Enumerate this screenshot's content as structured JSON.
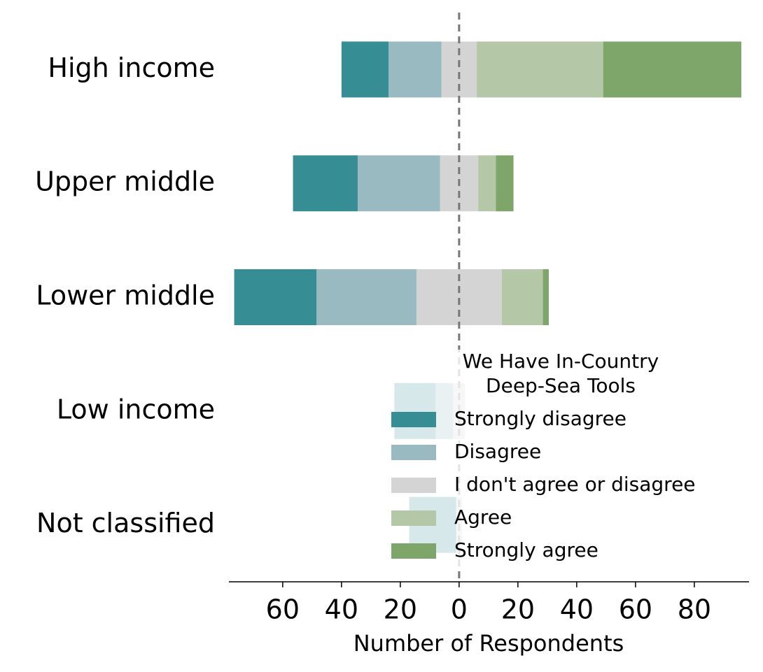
{
  "chart_data": {
    "type": "diverging_bar",
    "categories": [
      "High income",
      "Upper middle",
      "Lower middle",
      "Low income",
      "Not classified"
    ],
    "series": [
      {
        "name": "Strongly disagree",
        "color": "#378d94",
        "values": [
          16,
          22,
          28,
          14,
          16
        ]
      },
      {
        "name": "Disagree",
        "color": "#98bac0",
        "values": [
          18,
          28,
          34,
          6,
          0
        ]
      },
      {
        "name": "I don't agree or disagree",
        "color": "#d4d4d4",
        "values": [
          12,
          13,
          29,
          4,
          2
        ]
      },
      {
        "name": "Agree",
        "color": "#b4c8a8",
        "values": [
          43,
          6,
          14,
          0,
          0
        ]
      },
      {
        "name": "Strongly agree",
        "color": "#7ea66b",
        "values": [
          47,
          6,
          2,
          0,
          0
        ]
      }
    ],
    "xlabel": "Number of Respondents",
    "xlim": [
      -78.3,
      98.6
    ],
    "xticks": [
      {
        "value": -60,
        "label": "60"
      },
      {
        "value": -40,
        "label": "40"
      },
      {
        "value": -20,
        "label": "20"
      },
      0,
      20,
      40,
      60,
      80
    ],
    "legend_title": [
      "We Have In-Country",
      "Deep-Sea Tools"
    ],
    "legend": "lower right",
    "grid": false
  }
}
